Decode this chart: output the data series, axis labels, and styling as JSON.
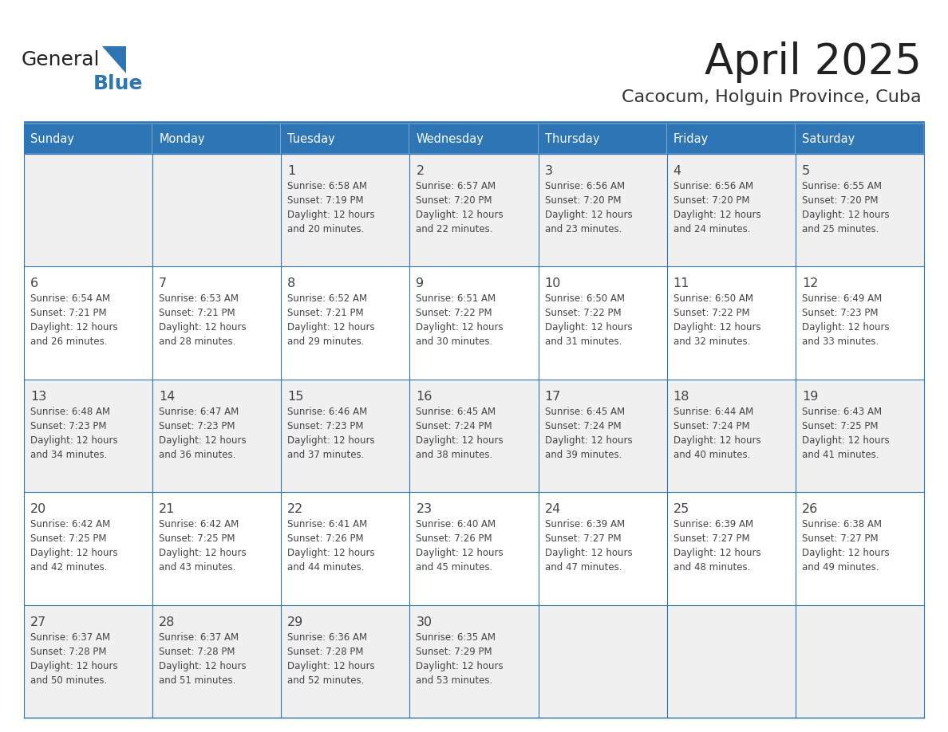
{
  "title": "April 2025",
  "subtitle": "Cacocum, Holguin Province, Cuba",
  "days_of_week": [
    "Sunday",
    "Monday",
    "Tuesday",
    "Wednesday",
    "Thursday",
    "Friday",
    "Saturday"
  ],
  "header_bg": "#2E75B6",
  "header_text_color": "#FFFFFF",
  "cell_bg_odd": "#F0F0F0",
  "cell_bg_even": "#FFFFFF",
  "cell_border_color": "#2E75B6",
  "text_color": "#444444",
  "title_color": "#222222",
  "subtitle_color": "#333333",
  "calendar": [
    [
      {
        "day": "",
        "sunrise": "",
        "sunset": "",
        "daylight_h": "",
        "daylight_m": ""
      },
      {
        "day": "",
        "sunrise": "",
        "sunset": "",
        "daylight_h": "",
        "daylight_m": ""
      },
      {
        "day": "1",
        "sunrise": "6:58 AM",
        "sunset": "7:19 PM",
        "daylight_h": "12 hours",
        "daylight_m": "and 20 minutes."
      },
      {
        "day": "2",
        "sunrise": "6:57 AM",
        "sunset": "7:20 PM",
        "daylight_h": "12 hours",
        "daylight_m": "and 22 minutes."
      },
      {
        "day": "3",
        "sunrise": "6:56 AM",
        "sunset": "7:20 PM",
        "daylight_h": "12 hours",
        "daylight_m": "and 23 minutes."
      },
      {
        "day": "4",
        "sunrise": "6:56 AM",
        "sunset": "7:20 PM",
        "daylight_h": "12 hours",
        "daylight_m": "and 24 minutes."
      },
      {
        "day": "5",
        "sunrise": "6:55 AM",
        "sunset": "7:20 PM",
        "daylight_h": "12 hours",
        "daylight_m": "and 25 minutes."
      }
    ],
    [
      {
        "day": "6",
        "sunrise": "6:54 AM",
        "sunset": "7:21 PM",
        "daylight_h": "12 hours",
        "daylight_m": "and 26 minutes."
      },
      {
        "day": "7",
        "sunrise": "6:53 AM",
        "sunset": "7:21 PM",
        "daylight_h": "12 hours",
        "daylight_m": "and 28 minutes."
      },
      {
        "day": "8",
        "sunrise": "6:52 AM",
        "sunset": "7:21 PM",
        "daylight_h": "12 hours",
        "daylight_m": "and 29 minutes."
      },
      {
        "day": "9",
        "sunrise": "6:51 AM",
        "sunset": "7:22 PM",
        "daylight_h": "12 hours",
        "daylight_m": "and 30 minutes."
      },
      {
        "day": "10",
        "sunrise": "6:50 AM",
        "sunset": "7:22 PM",
        "daylight_h": "12 hours",
        "daylight_m": "and 31 minutes."
      },
      {
        "day": "11",
        "sunrise": "6:50 AM",
        "sunset": "7:22 PM",
        "daylight_h": "12 hours",
        "daylight_m": "and 32 minutes."
      },
      {
        "day": "12",
        "sunrise": "6:49 AM",
        "sunset": "7:23 PM",
        "daylight_h": "12 hours",
        "daylight_m": "and 33 minutes."
      }
    ],
    [
      {
        "day": "13",
        "sunrise": "6:48 AM",
        "sunset": "7:23 PM",
        "daylight_h": "12 hours",
        "daylight_m": "and 34 minutes."
      },
      {
        "day": "14",
        "sunrise": "6:47 AM",
        "sunset": "7:23 PM",
        "daylight_h": "12 hours",
        "daylight_m": "and 36 minutes."
      },
      {
        "day": "15",
        "sunrise": "6:46 AM",
        "sunset": "7:23 PM",
        "daylight_h": "12 hours",
        "daylight_m": "and 37 minutes."
      },
      {
        "day": "16",
        "sunrise": "6:45 AM",
        "sunset": "7:24 PM",
        "daylight_h": "12 hours",
        "daylight_m": "and 38 minutes."
      },
      {
        "day": "17",
        "sunrise": "6:45 AM",
        "sunset": "7:24 PM",
        "daylight_h": "12 hours",
        "daylight_m": "and 39 minutes."
      },
      {
        "day": "18",
        "sunrise": "6:44 AM",
        "sunset": "7:24 PM",
        "daylight_h": "12 hours",
        "daylight_m": "and 40 minutes."
      },
      {
        "day": "19",
        "sunrise": "6:43 AM",
        "sunset": "7:25 PM",
        "daylight_h": "12 hours",
        "daylight_m": "and 41 minutes."
      }
    ],
    [
      {
        "day": "20",
        "sunrise": "6:42 AM",
        "sunset": "7:25 PM",
        "daylight_h": "12 hours",
        "daylight_m": "and 42 minutes."
      },
      {
        "day": "21",
        "sunrise": "6:42 AM",
        "sunset": "7:25 PM",
        "daylight_h": "12 hours",
        "daylight_m": "and 43 minutes."
      },
      {
        "day": "22",
        "sunrise": "6:41 AM",
        "sunset": "7:26 PM",
        "daylight_h": "12 hours",
        "daylight_m": "and 44 minutes."
      },
      {
        "day": "23",
        "sunrise": "6:40 AM",
        "sunset": "7:26 PM",
        "daylight_h": "12 hours",
        "daylight_m": "and 45 minutes."
      },
      {
        "day": "24",
        "sunrise": "6:39 AM",
        "sunset": "7:27 PM",
        "daylight_h": "12 hours",
        "daylight_m": "and 47 minutes."
      },
      {
        "day": "25",
        "sunrise": "6:39 AM",
        "sunset": "7:27 PM",
        "daylight_h": "12 hours",
        "daylight_m": "and 48 minutes."
      },
      {
        "day": "26",
        "sunrise": "6:38 AM",
        "sunset": "7:27 PM",
        "daylight_h": "12 hours",
        "daylight_m": "and 49 minutes."
      }
    ],
    [
      {
        "day": "27",
        "sunrise": "6:37 AM",
        "sunset": "7:28 PM",
        "daylight_h": "12 hours",
        "daylight_m": "and 50 minutes."
      },
      {
        "day": "28",
        "sunrise": "6:37 AM",
        "sunset": "7:28 PM",
        "daylight_h": "12 hours",
        "daylight_m": "and 51 minutes."
      },
      {
        "day": "29",
        "sunrise": "6:36 AM",
        "sunset": "7:28 PM",
        "daylight_h": "12 hours",
        "daylight_m": "and 52 minutes."
      },
      {
        "day": "30",
        "sunrise": "6:35 AM",
        "sunset": "7:29 PM",
        "daylight_h": "12 hours",
        "daylight_m": "and 53 minutes."
      },
      {
        "day": "",
        "sunrise": "",
        "sunset": "",
        "daylight_h": "",
        "daylight_m": ""
      },
      {
        "day": "",
        "sunrise": "",
        "sunset": "",
        "daylight_h": "",
        "daylight_m": ""
      },
      {
        "day": "",
        "sunrise": "",
        "sunset": "",
        "daylight_h": "",
        "daylight_m": ""
      }
    ]
  ],
  "background_color": "#FFFFFF",
  "logo_triangle_color": "#2E75B6",
  "logo_blue_color": "#2E75B6",
  "logo_general_color": "#222222"
}
